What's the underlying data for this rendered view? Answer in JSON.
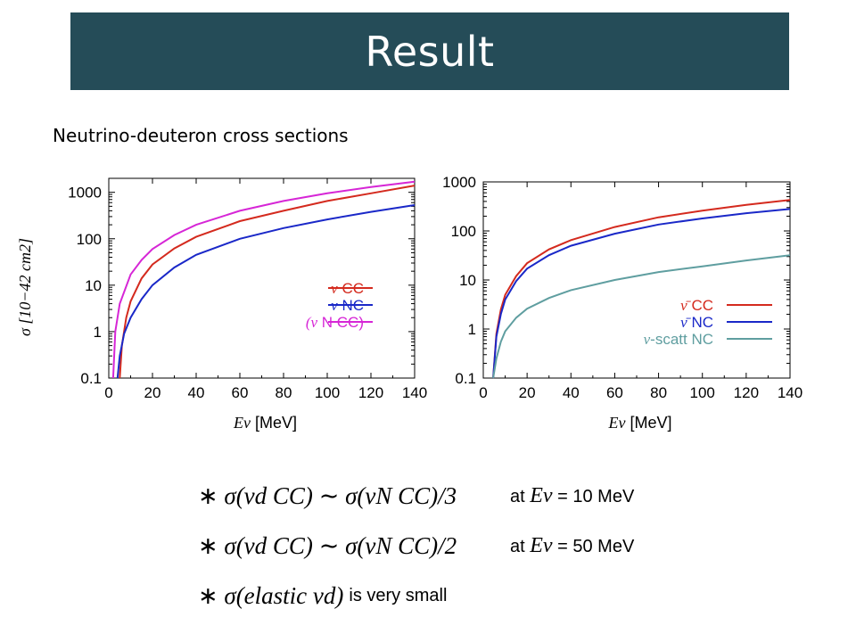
{
  "slide": {
    "title": "Result",
    "subtitle": "Neutrino-deuteron cross sections",
    "title_bar_color": "#254c58"
  },
  "chart_data": [
    {
      "type": "line",
      "title": "",
      "xlabel": "Eν [MeV]",
      "ylabel": "σ [10−42 cm2]",
      "xlim": [
        0,
        140
      ],
      "ylim": [
        0.1,
        2000
      ],
      "yscale": "log",
      "x_ticks": [
        "0",
        "20",
        "40",
        "60",
        "80",
        "100",
        "120",
        "140"
      ],
      "y_ticks": [
        "0.1",
        "1",
        "10",
        "100",
        "1000"
      ],
      "legend_position": "right-middle",
      "series": [
        {
          "name": "ν CC",
          "label_prefix": "ν",
          "label_main": "CC",
          "color": "#d42a1e",
          "x": [
            5,
            6,
            8,
            10,
            15,
            20,
            30,
            40,
            60,
            80,
            100,
            120,
            140
          ],
          "y": [
            0.1,
            0.5,
            2,
            4.5,
            14,
            28,
            62,
            110,
            240,
            400,
            650,
            950,
            1400
          ]
        },
        {
          "name": "ν NC",
          "label_prefix": "ν",
          "label_main": "NC",
          "color": "#1a28c8",
          "x": [
            4,
            5,
            7,
            10,
            15,
            20,
            30,
            40,
            60,
            80,
            100,
            120,
            140
          ],
          "y": [
            0.1,
            0.3,
            0.9,
            2,
            5,
            10,
            24,
            45,
            100,
            170,
            260,
            380,
            530
          ]
        },
        {
          "name": "(ν N CC)",
          "label_prefix": "(ν",
          "label_main": " N CC)",
          "color": "#d626d6",
          "x": [
            2,
            3,
            5,
            10,
            15,
            20,
            30,
            40,
            60,
            80,
            100,
            120,
            140
          ],
          "y": [
            0.1,
            1,
            4,
            17,
            35,
            60,
            120,
            200,
            400,
            650,
            950,
            1300,
            1700
          ]
        }
      ]
    },
    {
      "type": "line",
      "title": "",
      "xlabel": "Eν [MeV]",
      "ylabel": "",
      "xlim": [
        0,
        140
      ],
      "ylim": [
        0.1,
        1000
      ],
      "yscale": "log",
      "x_ticks": [
        "0",
        "20",
        "40",
        "60",
        "80",
        "100",
        "120",
        "140"
      ],
      "y_ticks": [
        "0.1",
        "1",
        "10",
        "100",
        "1000"
      ],
      "legend_position": "bottom-right",
      "series": [
        {
          "name": "ν̄ CC",
          "label_prefix": "ν̄",
          "label_main": "CC",
          "color": "#d42a1e",
          "x": [
            4.5,
            6,
            8,
            10,
            15,
            20,
            30,
            40,
            60,
            80,
            100,
            120,
            140
          ],
          "y": [
            0.1,
            0.8,
            2.5,
            5,
            12,
            22,
            42,
            65,
            120,
            190,
            260,
            340,
            430
          ]
        },
        {
          "name": "ν̄ NC",
          "label_prefix": "ν̄",
          "label_main": "NC",
          "color": "#1a28c8",
          "x": [
            4.5,
            6,
            8,
            10,
            15,
            20,
            30,
            40,
            60,
            80,
            100,
            120,
            140
          ],
          "y": [
            0.1,
            0.7,
            2,
            4,
            9.5,
            17,
            32,
            50,
            88,
            135,
            180,
            230,
            280
          ]
        },
        {
          "name": "ν-scatt NC",
          "label_prefix": "ν",
          "label_main": "-scatt NC",
          "color": "#5f9ea0",
          "x": [
            4.5,
            6,
            8,
            10,
            15,
            20,
            30,
            40,
            60,
            80,
            100,
            120,
            140
          ],
          "y": [
            0.1,
            0.25,
            0.55,
            0.9,
            1.7,
            2.6,
            4.3,
            6.2,
            10,
            14.5,
            19,
            25,
            32
          ]
        }
      ]
    }
  ],
  "bullets": [
    {
      "star": "∗",
      "lhs": "σ(νd CC)",
      "rel": "∼",
      "rhs": "σ(νN CC)/3",
      "note_prefix": "at",
      "note_var": "Eν",
      "note_suffix": "= 10 MeV"
    },
    {
      "star": "∗",
      "lhs": "σ(νd CC)",
      "rel": "∼",
      "rhs": "σ(νN CC)/2",
      "note_prefix": "at",
      "note_var": "Eν",
      "note_suffix": "= 50 MeV"
    },
    {
      "star": "∗",
      "lhs": "σ(elastic νd)",
      "rel": "",
      "rhs": "",
      "note_prefix": "is very small",
      "note_var": "",
      "note_suffix": ""
    }
  ]
}
